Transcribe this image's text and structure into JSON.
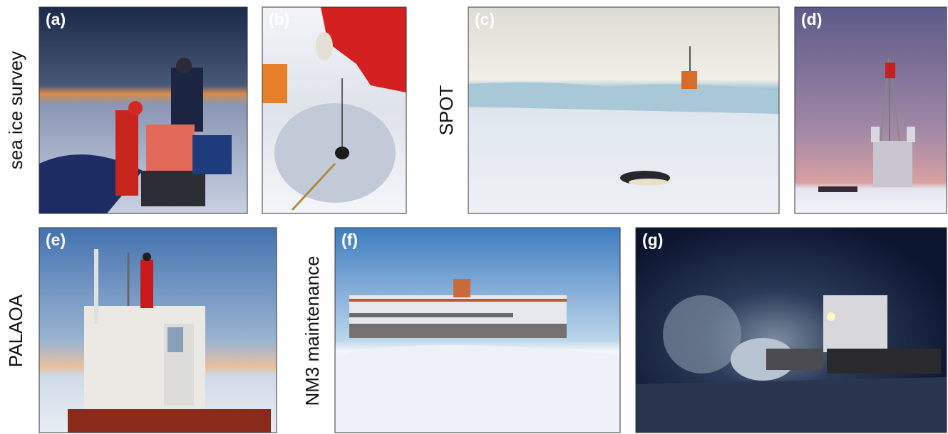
{
  "panels": [
    {
      "label": "(a)"
    },
    {
      "label": "(b)"
    },
    {
      "label": "(c)"
    },
    {
      "label": "(d)"
    },
    {
      "label": "(e)"
    },
    {
      "label": "(f)"
    },
    {
      "label": "(g)"
    }
  ],
  "side_labels": [
    "sea ice survey",
    "SPOT",
    "PALAOA",
    "NM3 maintenance"
  ]
}
